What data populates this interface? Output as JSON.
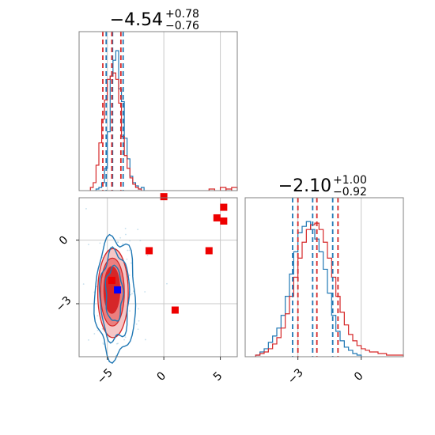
{
  "chart_data": [
    {
      "type": "histogram",
      "panel": "marginal-param-1",
      "title": {
        "median": "−4.54",
        "plus": "+0.78",
        "minus": "−0.76"
      },
      "xlim": [
        -7.5,
        6.5
      ],
      "x_ticks": [
        -5,
        0,
        5
      ],
      "grid": true,
      "series": [
        {
          "color": "#1f77b4",
          "bins": [
            -6.0,
            -5.75,
            -5.5,
            -5.25,
            -5.0,
            -4.75,
            -4.5,
            -4.25,
            -4.0,
            -3.75,
            -3.5,
            -3.25,
            -3.0,
            -2.75,
            -2.5,
            -2.25,
            -2.0,
            -1.75
          ],
          "counts": [
            0.01,
            0.02,
            0.05,
            0.14,
            0.37,
            0.72,
            0.82,
            0.88,
            0.64,
            0.56,
            0.33,
            0.2,
            0.09,
            0.05,
            0.03,
            0.01,
            0.02
          ],
          "quantiles": [
            -5.1,
            -4.54,
            -3.6
          ]
        },
        {
          "color": "#d62728",
          "bins": [
            -6.5,
            -6.25,
            -6.0,
            -5.75,
            -5.5,
            -5.25,
            -5.0,
            -4.75,
            -4.5,
            -4.25,
            -4.0,
            -3.75,
            -3.5,
            -3.25,
            -3.0,
            -2.75,
            -2.5,
            -2.25,
            -2.0
          ],
          "counts": [
            0.02,
            0.05,
            0.16,
            0.3,
            0.45,
            0.57,
            0.7,
            0.72,
            0.74,
            0.7,
            0.55,
            0.34,
            0.22,
            0.14,
            0.08,
            0.04,
            0.02,
            0.01
          ],
          "quantiles": [
            -5.4,
            -4.6,
            -3.8
          ]
        }
      ],
      "red_tail": [
        {
          "x0": 4.0,
          "x1": 4.5,
          "h": 0.01
        },
        {
          "x0": 5.0,
          "x1": 5.5,
          "h": 0.02
        },
        {
          "x0": 5.5,
          "x1": 6.0,
          "h": 0.01
        },
        {
          "x0": 6.0,
          "x1": 6.5,
          "h": 0.02
        }
      ]
    },
    {
      "type": "contour_scatter",
      "panel": "joint-param-1-param-2",
      "xlim": [
        -7.5,
        6.5
      ],
      "ylim": [
        -5.5,
        2.0
      ],
      "x_ticks": [
        -5,
        0,
        5
      ],
      "y_ticks": [
        -3,
        0
      ],
      "grid": true,
      "red_markers": [
        {
          "x": 0.0,
          "y": 2.05
        },
        {
          "x": 4.7,
          "y": 1.05
        },
        {
          "x": 5.3,
          "y": 1.55
        },
        {
          "x": 5.3,
          "y": 0.9
        },
        {
          "x": -1.3,
          "y": -0.5
        },
        {
          "x": 4.0,
          "y": -0.5
        },
        {
          "x": -4.6,
          "y": -1.9
        },
        {
          "x": 1.0,
          "y": -3.3
        }
      ],
      "blue_markers": [
        {
          "x": -4.1,
          "y": -2.35
        }
      ],
      "red_contours": [
        {
          "cx": -4.5,
          "cy": -2.5,
          "rx": 1.35,
          "ry": 2.1,
          "fill": "#f5c6c6"
        },
        {
          "cx": -4.55,
          "cy": -2.45,
          "rx": 1.05,
          "ry": 1.6,
          "fill": "#eb7f7f"
        },
        {
          "cx": -4.6,
          "cy": -2.35,
          "rx": 0.7,
          "ry": 1.1,
          "fill": "#d62728"
        }
      ],
      "blue_contours": [
        {
          "cx": -4.3,
          "cy": -2.7,
          "rx": 1.8,
          "ry": 2.8
        },
        {
          "cx": -4.35,
          "cy": -2.65,
          "rx": 1.3,
          "ry": 2.1
        },
        {
          "cx": -4.4,
          "cy": -2.55,
          "rx": 0.75,
          "ry": 1.3
        }
      ]
    },
    {
      "type": "histogram",
      "panel": "marginal-param-2",
      "title": {
        "median": "−2.10",
        "plus": "+1.00",
        "minus": "−0.92"
      },
      "xlim": [
        -5.5,
        2.0
      ],
      "x_ticks": [
        -3,
        0
      ],
      "grid": true,
      "series": [
        {
          "color": "#1f77b4",
          "bins": [
            -5.0,
            -4.8,
            -4.6,
            -4.4,
            -4.2,
            -4.0,
            -3.8,
            -3.6,
            -3.4,
            -3.2,
            -3.0,
            -2.8,
            -2.6,
            -2.4,
            -2.2,
            -2.0,
            -1.8,
            -1.6,
            -1.4,
            -1.2,
            -1.0,
            -0.8,
            -0.6,
            -0.4,
            -0.2,
            0.0
          ],
          "counts": [
            0.01,
            0.03,
            0.05,
            0.09,
            0.13,
            0.18,
            0.26,
            0.38,
            0.52,
            0.66,
            0.78,
            0.82,
            0.85,
            0.8,
            0.74,
            0.66,
            0.55,
            0.4,
            0.26,
            0.16,
            0.1,
            0.06,
            0.04,
            0.02,
            0.01
          ],
          "quantiles": [
            -3.25,
            -2.3,
            -1.35
          ]
        },
        {
          "color": "#d62728",
          "bins": [
            -5.0,
            -4.8,
            -4.6,
            -4.4,
            -4.2,
            -4.0,
            -3.8,
            -3.6,
            -3.4,
            -3.2,
            -3.0,
            -2.8,
            -2.6,
            -2.4,
            -2.2,
            -2.0,
            -1.8,
            -1.6,
            -1.4,
            -1.2,
            -1.0,
            -0.8,
            -0.6,
            -0.4,
            -0.2,
            0.0,
            0.2,
            0.4,
            0.6,
            0.8,
            1.0,
            1.2,
            1.4,
            1.6,
            1.8,
            2.0
          ],
          "counts": [
            0.01,
            0.02,
            0.03,
            0.05,
            0.08,
            0.12,
            0.18,
            0.27,
            0.38,
            0.5,
            0.62,
            0.72,
            0.8,
            0.83,
            0.84,
            0.8,
            0.72,
            0.62,
            0.5,
            0.38,
            0.28,
            0.2,
            0.14,
            0.1,
            0.07,
            0.05,
            0.04,
            0.03,
            0.03,
            0.02,
            0.02,
            0.01,
            0.01,
            0.01,
            0.01
          ],
          "quantiles": [
            -3.0,
            -2.1,
            -1.1
          ]
        }
      ]
    }
  ]
}
